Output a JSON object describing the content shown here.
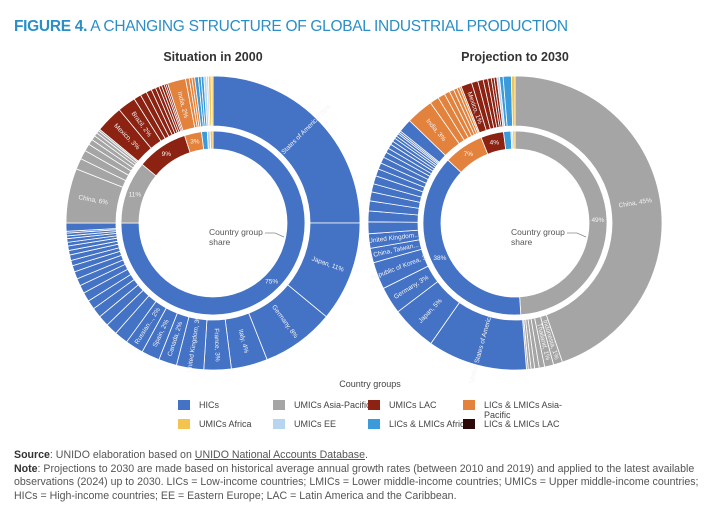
{
  "figure": {
    "label": "FIGURE 4.",
    "title": " A CHANGING STRUCTURE OF GLOBAL INDUSTRIAL PRODUCTION"
  },
  "chart_data": [
    {
      "type": "pie",
      "title": "Situation in 2000",
      "center_label": "Country group share",
      "inner": [
        {
          "group": "HICs",
          "value": 75,
          "label": "75%"
        },
        {
          "group": "UMICs Asia-Pacific",
          "value": 11,
          "label": "11%"
        },
        {
          "group": "UMICs LAC",
          "value": 9,
          "label": "9%"
        },
        {
          "group": "LICs & LMICs Asia-Pacific",
          "value": 3,
          "label": "3%"
        },
        {
          "group": "LICs & LMICs Africa",
          "value": 1,
          "label": ""
        },
        {
          "group": "UMICs EE",
          "value": 0.5,
          "label": ""
        },
        {
          "group": "UMICs Africa",
          "value": 0.5,
          "label": ""
        }
      ],
      "outer": [
        {
          "group": "HICs",
          "value": 25,
          "label": "United States of America, 25%"
        },
        {
          "group": "HICs",
          "value": 11,
          "label": "Japan, 11%"
        },
        {
          "group": "HICs",
          "value": 8,
          "label": "Germany, 8%"
        },
        {
          "group": "HICs",
          "value": 4,
          "label": "Italy, 4%"
        },
        {
          "group": "HICs",
          "value": 3,
          "label": "France, 3%"
        },
        {
          "group": "HICs",
          "value": 3,
          "label": "United Kingdom, 3%"
        },
        {
          "group": "HICs",
          "value": 2,
          "label": "Canada, 2%"
        },
        {
          "group": "HICs",
          "value": 2,
          "label": "Spain, 2%"
        },
        {
          "group": "HICs",
          "value": 2,
          "label": "Russian..., 2%"
        },
        {
          "group": "HICs",
          "value": 1.5
        },
        {
          "group": "HICs",
          "value": 1.3
        },
        {
          "group": "HICs",
          "value": 1.2
        },
        {
          "group": "HICs",
          "value": 1.1
        },
        {
          "group": "HICs",
          "value": 1
        },
        {
          "group": "HICs",
          "value": 1
        },
        {
          "group": "HICs",
          "value": 0.9
        },
        {
          "group": "HICs",
          "value": 0.8
        },
        {
          "group": "HICs",
          "value": 0.8
        },
        {
          "group": "HICs",
          "value": 0.7
        },
        {
          "group": "HICs",
          "value": 0.6
        },
        {
          "group": "HICs",
          "value": 0.6
        },
        {
          "group": "HICs",
          "value": 0.5
        },
        {
          "group": "HICs",
          "value": 0.5
        },
        {
          "group": "HICs",
          "value": 0.4
        },
        {
          "group": "HICs",
          "value": 0.4
        },
        {
          "group": "HICs",
          "value": 0.3
        },
        {
          "group": "HICs",
          "value": 0.3
        },
        {
          "group": "HICs",
          "value": 0.2
        },
        {
          "group": "HICs",
          "value": 0.9
        },
        {
          "group": "UMICs Asia-Pacific",
          "value": 6,
          "label": "China, 6%"
        },
        {
          "group": "UMICs Asia-Pacific",
          "value": 1.2
        },
        {
          "group": "UMICs Asia-Pacific",
          "value": 1
        },
        {
          "group": "UMICs Asia-Pacific",
          "value": 0.8
        },
        {
          "group": "UMICs Asia-Pacific",
          "value": 0.6
        },
        {
          "group": "UMICs Asia-Pacific",
          "value": 0.5
        },
        {
          "group": "UMICs Asia-Pacific",
          "value": 0.4
        },
        {
          "group": "UMICs Asia-Pacific",
          "value": 0.3
        },
        {
          "group": "UMICs Asia-Pacific",
          "value": 0.2
        },
        {
          "group": "UMICs LAC",
          "value": 3,
          "label": "Mexico, 3%"
        },
        {
          "group": "UMICs LAC",
          "value": 2,
          "label": "Brazil, 2%"
        },
        {
          "group": "UMICs LAC",
          "value": 0.8
        },
        {
          "group": "UMICs LAC",
          "value": 0.7
        },
        {
          "group": "UMICs LAC",
          "value": 0.6
        },
        {
          "group": "UMICs LAC",
          "value": 0.5
        },
        {
          "group": "UMICs LAC",
          "value": 0.4
        },
        {
          "group": "UMICs LAC",
          "value": 0.3
        },
        {
          "group": "UMICs LAC",
          "value": 0.3
        },
        {
          "group": "UMICs LAC",
          "value": 0.2
        },
        {
          "group": "UMICs LAC",
          "value": 0.2
        },
        {
          "group": "LICs & LMICs Asia-Pacific",
          "value": 2,
          "label": "India, 2%"
        },
        {
          "group": "LICs & LMICs Asia-Pacific",
          "value": 0.4
        },
        {
          "group": "LICs & LMICs Asia-Pacific",
          "value": 0.3
        },
        {
          "group": "LICs & LMICs Asia-Pacific",
          "value": 0.3
        },
        {
          "group": "LICs & LMICs Africa",
          "value": 0.4
        },
        {
          "group": "LICs & LMICs Africa",
          "value": 0.3
        },
        {
          "group": "LICs & LMICs Africa",
          "value": 0.3
        },
        {
          "group": "UMICs EE",
          "value": 0.3
        },
        {
          "group": "UMICs EE",
          "value": 0.2
        },
        {
          "group": "UMICs Africa",
          "value": 0.3
        },
        {
          "group": "UMICs Africa",
          "value": 0.2
        }
      ]
    },
    {
      "type": "pie",
      "title": "Projection to 2030",
      "center_label": "Country group share",
      "inner": [
        {
          "group": "UMICs Asia-Pacific",
          "value": 49,
          "label": "49%"
        },
        {
          "group": "HICs",
          "value": 38,
          "label": "38%"
        },
        {
          "group": "LICs & LMICs Asia-Pacific",
          "value": 7,
          "label": "7%"
        },
        {
          "group": "UMICs LAC",
          "value": 4,
          "label": "4%"
        },
        {
          "group": "LICs & LMICs Africa",
          "value": 1.3,
          "label": ""
        },
        {
          "group": "UMICs EE",
          "value": 0.3,
          "label": ""
        },
        {
          "group": "UMICs Africa",
          "value": 0.4,
          "label": ""
        }
      ],
      "outer": [
        {
          "group": "UMICs Asia-Pacific",
          "value": 45,
          "label": "China, 45%"
        },
        {
          "group": "UMICs Asia-Pacific",
          "value": 1,
          "label": "Indonesia, 1%"
        },
        {
          "group": "UMICs Asia-Pacific",
          "value": 1,
          "label": "Thailand, 1%"
        },
        {
          "group": "UMICs Asia-Pacific",
          "value": 0.6
        },
        {
          "group": "UMICs Asia-Pacific",
          "value": 0.5
        },
        {
          "group": "UMICs Asia-Pacific",
          "value": 0.4
        },
        {
          "group": "UMICs Asia-Pacific",
          "value": 0.3
        },
        {
          "group": "UMICs Asia-Pacific",
          "value": 0.2
        },
        {
          "group": "HICs",
          "value": 11,
          "label": "United States of America, 11%"
        },
        {
          "group": "HICs",
          "value": 5,
          "label": "Japan, 5%"
        },
        {
          "group": "HICs",
          "value": 3,
          "label": "Germany, 3%"
        },
        {
          "group": "HICs",
          "value": 3,
          "label": "Republic of Korea, 3%"
        },
        {
          "group": "HICs",
          "value": 1.6,
          "label": "China, Taiwan..."
        },
        {
          "group": "HICs",
          "value": 1.6,
          "label": "United Kingdom..."
        },
        {
          "group": "HICs",
          "value": 1.3
        },
        {
          "group": "HICs",
          "value": 1.2
        },
        {
          "group": "HICs",
          "value": 1.1
        },
        {
          "group": "HICs",
          "value": 1
        },
        {
          "group": "HICs",
          "value": 0.9
        },
        {
          "group": "HICs",
          "value": 0.9
        },
        {
          "group": "HICs",
          "value": 0.8
        },
        {
          "group": "HICs",
          "value": 0.7
        },
        {
          "group": "HICs",
          "value": 0.7
        },
        {
          "group": "HICs",
          "value": 0.6
        },
        {
          "group": "HICs",
          "value": 0.5
        },
        {
          "group": "HICs",
          "value": 0.5
        },
        {
          "group": "HICs",
          "value": 0.4
        },
        {
          "group": "HICs",
          "value": 0.4
        },
        {
          "group": "HICs",
          "value": 0.3
        },
        {
          "group": "HICs",
          "value": 0.3
        },
        {
          "group": "HICs",
          "value": 0.2
        },
        {
          "group": "HICs",
          "value": 0.2
        },
        {
          "group": "HICs",
          "value": 1.5
        },
        {
          "group": "LICs & LMICs Asia-Pacific",
          "value": 3,
          "label": "India, 3%"
        },
        {
          "group": "LICs & LMICs Asia-Pacific",
          "value": 1
        },
        {
          "group": "LICs & LMICs Asia-Pacific",
          "value": 0.8
        },
        {
          "group": "LICs & LMICs Asia-Pacific",
          "value": 0.6
        },
        {
          "group": "LICs & LMICs Asia-Pacific",
          "value": 0.5
        },
        {
          "group": "LICs & LMICs Asia-Pacific",
          "value": 0.4
        },
        {
          "group": "LICs & LMICs Asia-Pacific",
          "value": 0.3
        },
        {
          "group": "LICs & LMICs Asia-Pacific",
          "value": 0.2
        },
        {
          "group": "UMICs LAC",
          "value": 1.2,
          "label": "Mexico, 1%"
        },
        {
          "group": "UMICs LAC",
          "value": 0.7
        },
        {
          "group": "UMICs LAC",
          "value": 0.6
        },
        {
          "group": "UMICs LAC",
          "value": 0.5
        },
        {
          "group": "UMICs LAC",
          "value": 0.4
        },
        {
          "group": "UMICs LAC",
          "value": 0.3
        },
        {
          "group": "UMICs LAC",
          "value": 0.3
        },
        {
          "group": "UMICs EE",
          "value": 0.3
        },
        {
          "group": "LICs & LMICs Africa",
          "value": 0.4
        },
        {
          "group": "LICs & LMICs Africa",
          "value": 0.9
        },
        {
          "group": "UMICs Africa",
          "value": 0.4
        }
      ]
    }
  ],
  "legend": {
    "title": "Country groups",
    "items": [
      {
        "name": "HICs",
        "color": "#4472c4"
      },
      {
        "name": "UMICs Asia-Pacific",
        "color": "#a5a5a5"
      },
      {
        "name": "UMICs LAC",
        "color": "#8b2212"
      },
      {
        "name": "LICs & LMICs Asia-Pacific",
        "color": "#e3823d"
      },
      {
        "name": "UMICs Africa",
        "color": "#f2c44f"
      },
      {
        "name": "UMICs EE",
        "color": "#b7d5ee"
      },
      {
        "name": "LICs & LMICs Africa",
        "color": "#3b9ada"
      },
      {
        "name": "LICs & LMICs LAC",
        "color": "#2c0808"
      }
    ]
  },
  "notes": {
    "source_label": "Source",
    "source_text": ": UNIDO elaboration based on ",
    "source_link": "UNIDO National Accounts Database",
    "source_end": ".",
    "note_label": "Note",
    "note_text": ": Projections to 2030 are made based on historical average annual growth rates (between 2010 and 2019) and applied to the latest available observations (2024) up to 2030. LICs = Low-income countries; LMICs = Lower middle-income countries; UMICs = Upper middle-income countries; HICs = High-income countries; EE = Eastern Europe; LAC = Latin America and the Caribbean."
  }
}
